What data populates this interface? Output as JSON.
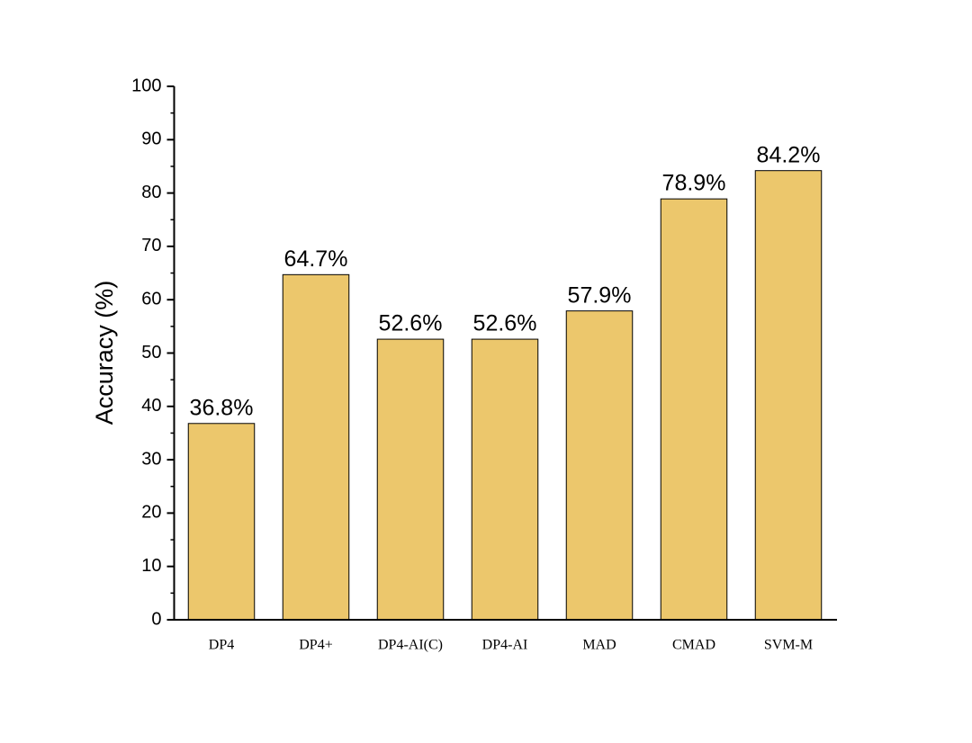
{
  "chart_data": {
    "type": "bar",
    "y_label": "Accuracy (%)",
    "categories": [
      "DP4",
      "DP4+",
      "DP4-AI(C)",
      "DP4-AI",
      "MAD",
      "CMAD",
      "SVM-M"
    ],
    "values": [
      36.8,
      64.7,
      52.6,
      52.6,
      57.9,
      78.9,
      84.2
    ],
    "value_labels": [
      "36.8%",
      "64.7%",
      "52.6%",
      "52.6%",
      "57.9%",
      "78.9%",
      "84.2%"
    ],
    "color": "#ecc76c",
    "ylim": [
      0,
      100
    ],
    "yticks": [
      0,
      10,
      20,
      30,
      40,
      50,
      60,
      70,
      80,
      90,
      100
    ],
    "yminor_ticks": [
      5,
      15,
      25,
      35,
      45,
      55,
      65,
      75,
      85,
      95
    ],
    "grid": false
  }
}
